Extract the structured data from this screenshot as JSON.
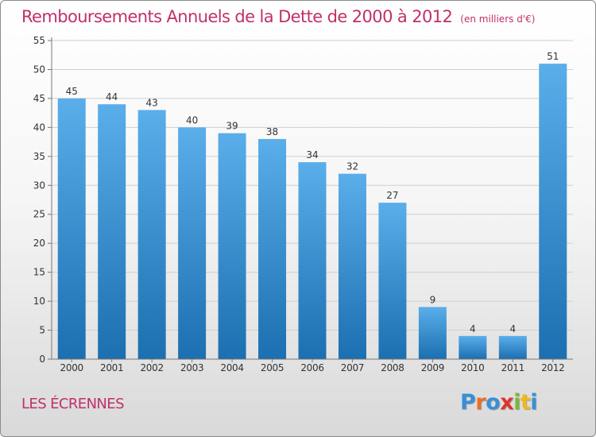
{
  "title": "Remboursements Annuels de la Dette de 2000 à 2012",
  "subtitle": "(en milliers d'€)",
  "place": "LES ÉCRENNES",
  "logo": {
    "text": "Proxiti",
    "colors": [
      "#3a8fd6",
      "#e8702a",
      "#3a8fd6",
      "#e0322a",
      "#7ab83a",
      "#f0b81e",
      "#3a8fd6"
    ]
  },
  "colors": {
    "title": "#c0306a",
    "bar_top": "#5aaeea",
    "bar_bottom": "#1c6fb0",
    "grid": "#cfcfcf",
    "axis": "#777777"
  },
  "chart_data": {
    "type": "bar",
    "categories": [
      "2000",
      "2001",
      "2002",
      "2003",
      "2004",
      "2005",
      "2006",
      "2007",
      "2008",
      "2009",
      "2010",
      "2011",
      "2012"
    ],
    "values": [
      45,
      44,
      43,
      40,
      39,
      38,
      34,
      32,
      27,
      9,
      4,
      4,
      51
    ],
    "data_labels": [
      "45",
      "44",
      "43",
      "40",
      "39",
      "38",
      "34",
      "32",
      "27",
      "9",
      "4",
      "4",
      "51"
    ],
    "yticks": [
      "0",
      "5",
      "10",
      "15",
      "20",
      "25",
      "30",
      "35",
      "40",
      "45",
      "50",
      "55"
    ],
    "ylim": [
      0,
      55
    ],
    "grid": true,
    "legend": "none"
  }
}
